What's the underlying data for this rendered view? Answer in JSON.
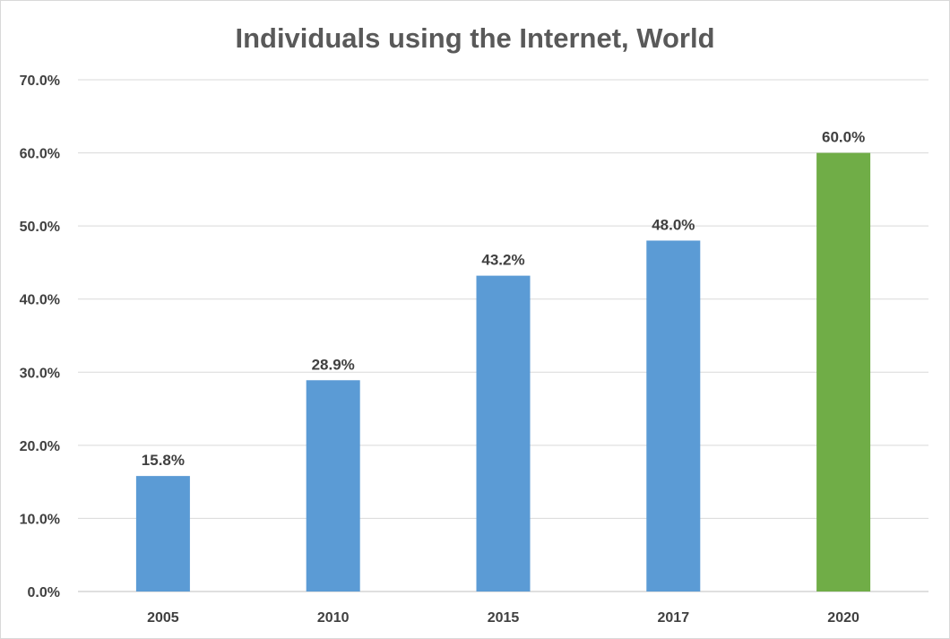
{
  "chart_data": {
    "type": "bar",
    "title": "Individuals using the Internet, World",
    "categories": [
      "2005",
      "2010",
      "2015",
      "2017",
      "2020"
    ],
    "values": [
      15.8,
      28.9,
      43.2,
      48.0,
      60.0
    ],
    "data_labels": [
      "15.8%",
      "28.9%",
      "43.2%",
      "48.0%",
      "60.0%"
    ],
    "bar_colors": [
      "#5b9bd5",
      "#5b9bd5",
      "#5b9bd5",
      "#5b9bd5",
      "#70ad47"
    ],
    "ylim": [
      0,
      70
    ],
    "yticks": [
      0,
      10,
      20,
      30,
      40,
      50,
      60,
      70
    ],
    "ytick_labels": [
      "0.0%",
      "10.0%",
      "20.0%",
      "30.0%",
      "40.0%",
      "50.0%",
      "60.0%",
      "70.0%"
    ],
    "grid": true,
    "legend": "none"
  }
}
